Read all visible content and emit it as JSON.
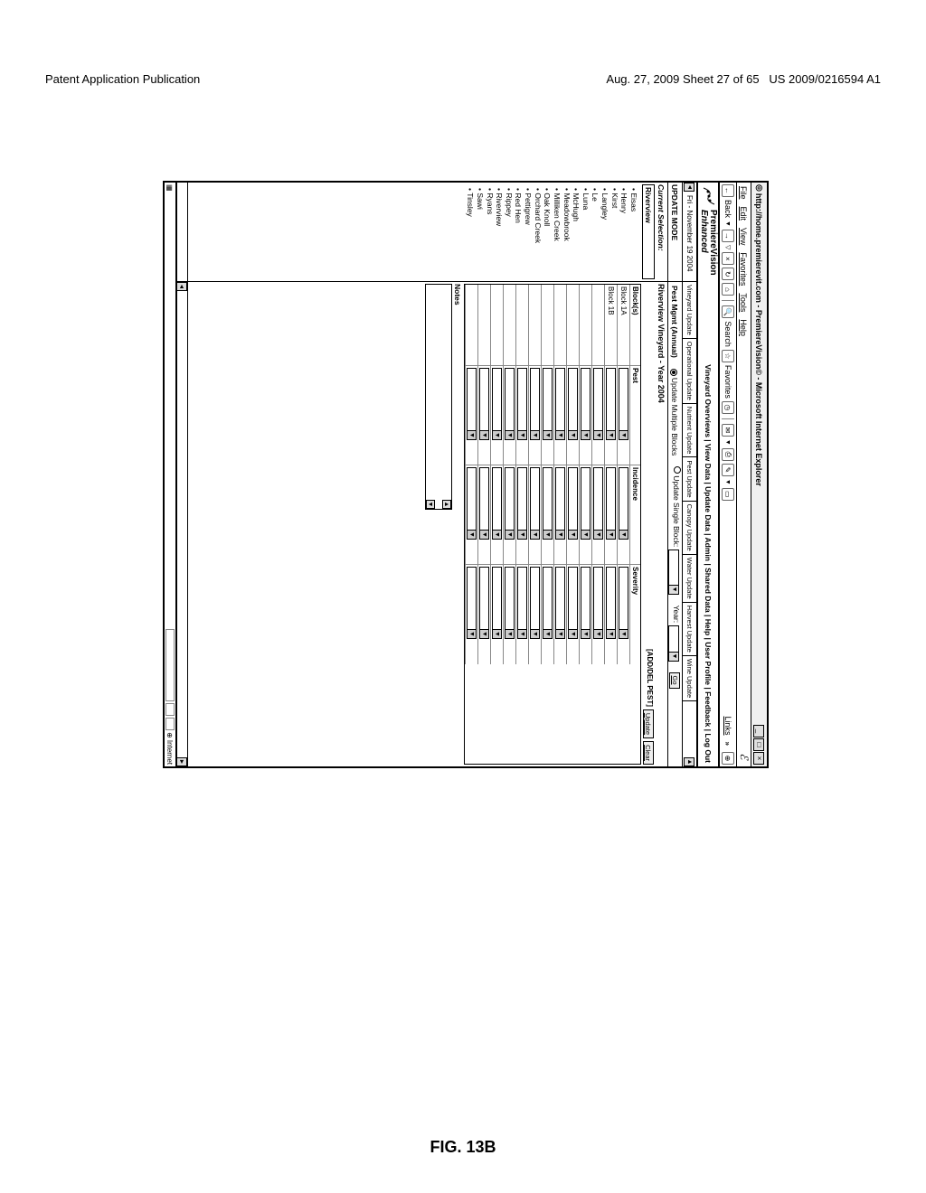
{
  "patent": {
    "left_header": "Patent Application Publication",
    "right_header_line1": "Aug. 27, 2009  Sheet 27 of 65",
    "right_header_line2": "US 2009/0216594 A1",
    "figure_label": "FIG. 13B"
  },
  "window": {
    "title": "http://home.premierevit.com - PremiereVision© - Microsoft Internet Explorer",
    "menus": [
      "File",
      "Edit",
      "View",
      "Favorites",
      "Tools",
      "Help"
    ],
    "ie_logo": "e"
  },
  "toolbar": {
    "back": "Back",
    "search": "Search",
    "favorites": "Favorites",
    "links": "Links"
  },
  "brand": {
    "name_bold": "PremiereVision",
    "name_italic": "Enhanced",
    "nav": "Vineyard Overviews | View Data | Update Data | Admin | Shared Data | Help | User Profile | Feedback | Log Out"
  },
  "datebar": {
    "date": "Fri - November 19 2004",
    "tabs": [
      "Vineyard Update",
      "Operational Update",
      "Nutrient Update",
      "Pest Update",
      "Canopy Update",
      "Water Update",
      "Harvest Update",
      "Wine Update"
    ]
  },
  "modebar": {
    "label": "UPDATE MODE",
    "mgmt": "Pest Mgmt (Annual)",
    "opt_multi": "Update Multiple Blocks",
    "opt_single": "Update Single Block:",
    "year_label": "Year:",
    "go": "Go"
  },
  "sidebar": {
    "cursel_label": "Current Selection:",
    "selected": "Riverview",
    "vineyards": [
      "Eisas",
      "Henry",
      "Kirst",
      "Langley",
      "Le",
      "Luna",
      "McHugh",
      "Meadowbrook",
      "Milliken Creek",
      "Oak Knoll",
      "Orchard Creek",
      "Pettigrew",
      "Red Hen",
      "Rippey",
      "Riverview",
      "Ryans",
      "Sawi",
      "Tinsley"
    ]
  },
  "main": {
    "title": "Riverview Vineyard - Year 2004",
    "add_del": "[ADD/DEL PEST]",
    "update_btn": "Update",
    "clear_btn": "Clear",
    "columns": {
      "block": "Block(s)",
      "pest": "Pest",
      "incidence": "Incidence",
      "severity": "Severity"
    },
    "rows": [
      {
        "block": "Block 1A"
      },
      {
        "block": "Block 1B"
      },
      {
        "block": ""
      },
      {
        "block": ""
      },
      {
        "block": ""
      },
      {
        "block": ""
      },
      {
        "block": ""
      },
      {
        "block": ""
      },
      {
        "block": ""
      },
      {
        "block": ""
      },
      {
        "block": ""
      },
      {
        "block": ""
      },
      {
        "block": ""
      }
    ],
    "notes_label": "Notes"
  },
  "status": {
    "zone": "Internet"
  }
}
